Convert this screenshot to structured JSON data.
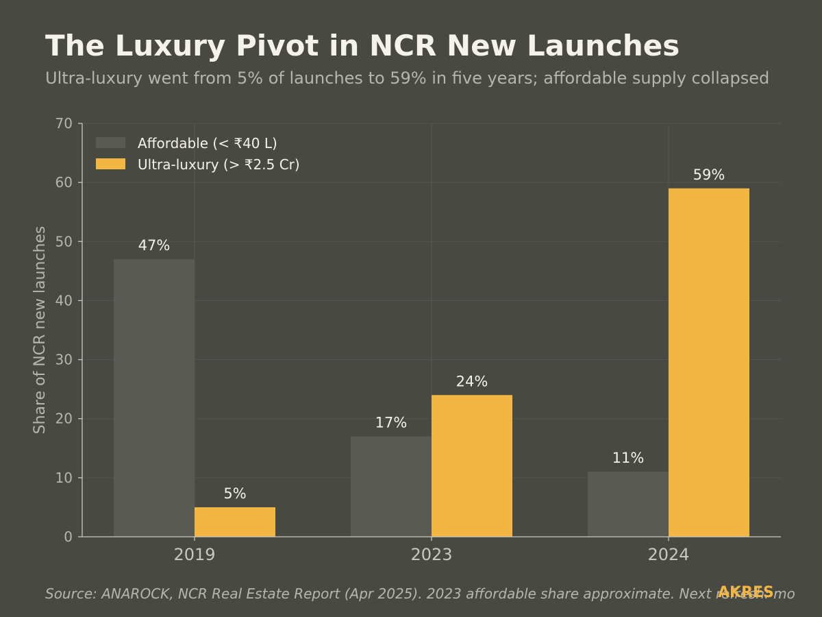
{
  "header": {
    "title": "The Luxury Pivot in NCR New Launches",
    "subtitle": "Ultra-luxury went from 5% of launches to 59% in five years; affordable supply collapsed"
  },
  "footer": {
    "source": "Source: ANAROCK, NCR Real Estate Report (Apr 2025). 2023 affordable share approximate. Next refresh: mo",
    "brand": "AKRES"
  },
  "chart_data": {
    "type": "bar",
    "title": "The Luxury Pivot in NCR New Launches",
    "subtitle": "Ultra-luxury went from 5% of launches to 59% in five years; affordable supply collapsed",
    "categories": [
      "2019",
      "2023",
      "2024"
    ],
    "series": [
      {
        "name": "Affordable (< ₹40 L)",
        "values": [
          47,
          17,
          11
        ],
        "labels": [
          "47%",
          "17%",
          "11%"
        ],
        "color": "#5a5a55"
      },
      {
        "name": "Ultra-luxury (> ₹2.5 Cr)",
        "values": [
          5,
          24,
          59
        ],
        "labels": [
          "5%",
          "24%",
          "59%"
        ],
        "color": "#f2b643"
      }
    ],
    "xlabel": "",
    "ylabel": "Share of NCR new launches",
    "ylim": [
      0,
      70
    ],
    "yticks": [
      0,
      10,
      20,
      30,
      40,
      50,
      60,
      70
    ],
    "grid": true,
    "legend_position": "top-left"
  },
  "colors": {
    "background": "#494944",
    "accent": "#f2b643",
    "muted_bar": "#5a5a55",
    "text_primary": "#f5f2ea",
    "text_secondary": "#b7b5ae"
  }
}
